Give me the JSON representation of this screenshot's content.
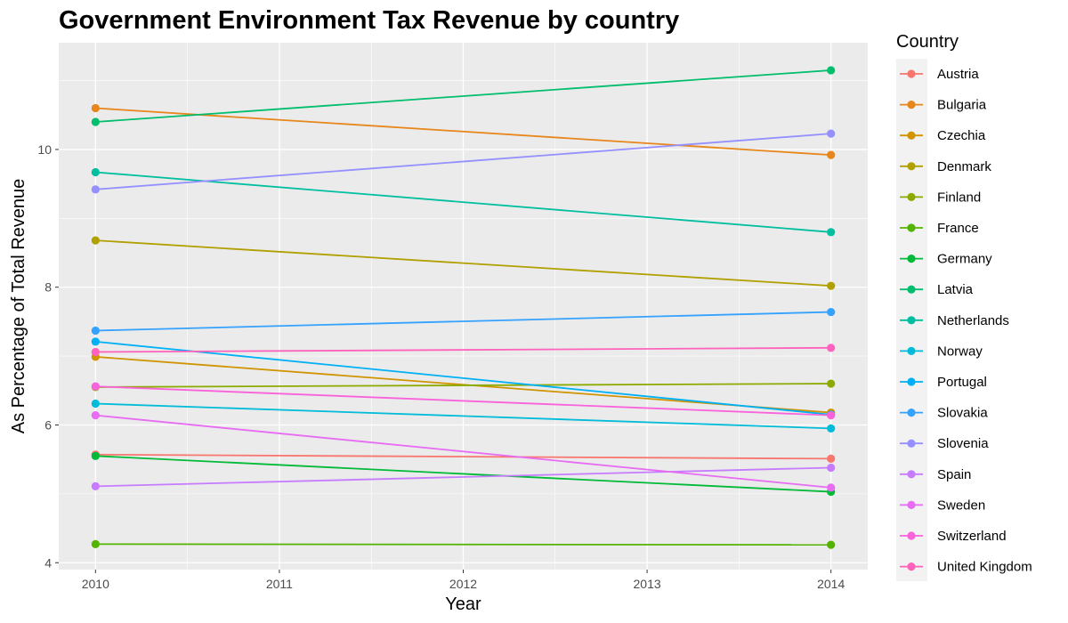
{
  "chart_data": {
    "type": "line",
    "title": "Government Environment Tax Revenue by country",
    "xlabel": "Year",
    "ylabel": "As Percentage of Total Revenue",
    "x": [
      2010,
      2014
    ],
    "xlim": [
      2009.8,
      2014.2
    ],
    "ylim": [
      3.9,
      11.55
    ],
    "x_ticks": [
      2010,
      2011,
      2012,
      2013,
      2014
    ],
    "y_ticks": [
      4,
      6,
      8,
      10
    ],
    "grid": true,
    "legend_title": "Country",
    "legend_position": "right",
    "series": [
      {
        "name": "Austria",
        "color": "#F8766D",
        "values": [
          5.57,
          5.51
        ]
      },
      {
        "name": "Bulgaria",
        "color": "#E7861B",
        "values": [
          10.6,
          9.92
        ]
      },
      {
        "name": "Czechia",
        "color": "#CF9400",
        "values": [
          6.99,
          6.18
        ]
      },
      {
        "name": "Denmark",
        "color": "#B0A000",
        "values": [
          8.68,
          8.02
        ]
      },
      {
        "name": "Finland",
        "color": "#8CAB00",
        "values": [
          6.55,
          6.6
        ]
      },
      {
        "name": "France",
        "color": "#53B400",
        "values": [
          4.27,
          4.26
        ]
      },
      {
        "name": "Germany",
        "color": "#00BA38",
        "values": [
          5.55,
          5.03
        ]
      },
      {
        "name": "Latvia",
        "color": "#00BE6C",
        "values": [
          10.4,
          11.15
        ]
      },
      {
        "name": "Netherlands",
        "color": "#00BFA0",
        "values": [
          9.67,
          8.8
        ]
      },
      {
        "name": "Norway",
        "color": "#00BCD8",
        "values": [
          6.31,
          5.95
        ]
      },
      {
        "name": "Portugal",
        "color": "#00B0F6",
        "values": [
          7.21,
          6.15
        ]
      },
      {
        "name": "Slovakia",
        "color": "#35A2FF",
        "values": [
          7.37,
          7.64
        ]
      },
      {
        "name": "Slovenia",
        "color": "#9590FF",
        "values": [
          9.42,
          10.23
        ]
      },
      {
        "name": "Spain",
        "color": "#C77CFF",
        "values": [
          5.11,
          5.38
        ]
      },
      {
        "name": "Sweden",
        "color": "#E76BF3",
        "values": [
          6.14,
          5.09
        ]
      },
      {
        "name": "Switzerland",
        "color": "#FA62DB",
        "values": [
          6.56,
          6.14
        ]
      },
      {
        "name": "United Kingdom",
        "color": "#FF62BC",
        "values": [
          7.06,
          7.12
        ]
      }
    ]
  }
}
